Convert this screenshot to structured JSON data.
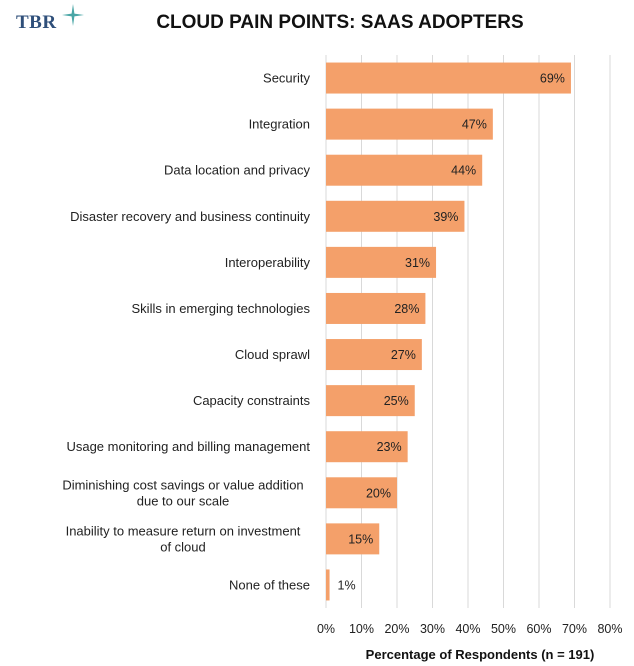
{
  "logo": {
    "text": "TBR"
  },
  "chart_data": {
    "type": "bar",
    "orientation": "horizontal",
    "title": "CLOUD PAIN POINTS: SAAS ADOPTERS",
    "xlabel": "Percentage of Respondents (n = 191)",
    "ylabel": "",
    "categories": [
      "Security",
      "Integration",
      "Data location and privacy",
      "Disaster recovery and business continuity",
      "Interoperability",
      "Skills in emerging technologies",
      "Cloud sprawl",
      "Capacity constraints",
      "Usage monitoring and billing management",
      "Diminishing cost savings or value addition due to our scale",
      "Inability to measure return on investment of cloud",
      "None of these"
    ],
    "category_lines": [
      [
        "Security"
      ],
      [
        "Integration"
      ],
      [
        "Data location and privacy"
      ],
      [
        "Disaster recovery and business continuity"
      ],
      [
        "Interoperability"
      ],
      [
        "Skills in emerging technologies"
      ],
      [
        "Cloud sprawl"
      ],
      [
        "Capacity constraints"
      ],
      [
        "Usage monitoring and billing management"
      ],
      [
        "Diminishing cost savings or value addition",
        "due to our scale"
      ],
      [
        "Inability to measure return on investment",
        "of cloud"
      ],
      [
        "None of these"
      ]
    ],
    "values": [
      69,
      47,
      44,
      39,
      31,
      28,
      27,
      25,
      23,
      20,
      15,
      1
    ],
    "value_labels": [
      "69%",
      "47%",
      "44%",
      "39%",
      "31%",
      "28%",
      "27%",
      "25%",
      "23%",
      "20%",
      "15%",
      "1%"
    ],
    "xlim": [
      0,
      80
    ],
    "xticks": [
      "0%",
      "10%",
      "20%",
      "30%",
      "40%",
      "50%",
      "60%",
      "70%",
      "80%"
    ],
    "grid": true,
    "bar_color": "#f4a06a",
    "grid_color": "#d9d9d9"
  }
}
